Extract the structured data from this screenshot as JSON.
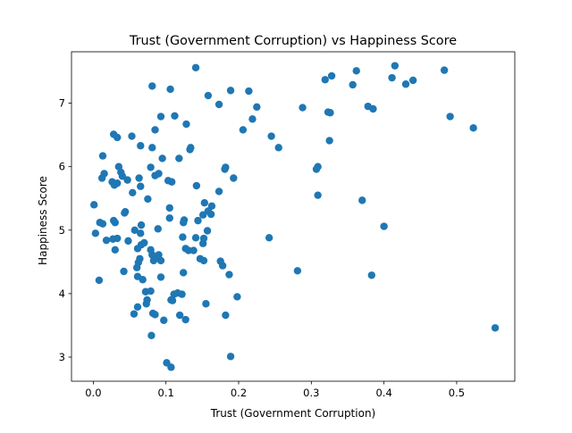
{
  "chart_data": {
    "type": "scatter",
    "title": "Trust (Government Corruption) vs Happiness Score",
    "xlabel": "Trust (Government Corruption)",
    "ylabel": "Happiness Score",
    "xlim": [
      -0.03,
      0.58
    ],
    "ylim": [
      2.62,
      7.81
    ],
    "xticks": [
      "0.0",
      "0.1",
      "0.2",
      "0.3",
      "0.4",
      "0.5"
    ],
    "yticks": [
      "3",
      "4",
      "5",
      "6",
      "7"
    ],
    "grid": false,
    "marker_color": "#1f77b4",
    "points": [
      [
        0.141,
        7.56
      ],
      [
        0.362,
        7.51
      ],
      [
        0.415,
        7.59
      ],
      [
        0.483,
        7.52
      ],
      [
        0.328,
        7.43
      ],
      [
        0.44,
        7.36
      ],
      [
        0.319,
        7.37
      ],
      [
        0.411,
        7.4
      ],
      [
        0.357,
        7.29
      ],
      [
        0.43,
        7.3
      ],
      [
        0.081,
        7.27
      ],
      [
        0.106,
        7.22
      ],
      [
        0.158,
        7.12
      ],
      [
        0.189,
        7.2
      ],
      [
        0.214,
        7.19
      ],
      [
        0.173,
        6.98
      ],
      [
        0.225,
        6.94
      ],
      [
        0.288,
        6.93
      ],
      [
        0.378,
        6.95
      ],
      [
        0.385,
        6.91
      ],
      [
        0.323,
        6.86
      ],
      [
        0.326,
        6.85
      ],
      [
        0.112,
        6.8
      ],
      [
        0.093,
        6.79
      ],
      [
        0.219,
        6.75
      ],
      [
        0.491,
        6.79
      ],
      [
        0.128,
        6.67
      ],
      [
        0.085,
        6.58
      ],
      [
        0.206,
        6.58
      ],
      [
        0.523,
        6.61
      ],
      [
        0.028,
        6.51
      ],
      [
        0.033,
        6.46
      ],
      [
        0.053,
        6.48
      ],
      [
        0.245,
        6.48
      ],
      [
        0.325,
        6.41
      ],
      [
        0.065,
        6.33
      ],
      [
        0.081,
        6.3
      ],
      [
        0.134,
        6.3
      ],
      [
        0.133,
        6.27
      ],
      [
        0.255,
        6.3
      ],
      [
        0.013,
        6.17
      ],
      [
        0.095,
        6.13
      ],
      [
        0.118,
        6.13
      ],
      [
        0.035,
        6.0
      ],
      [
        0.079,
        5.99
      ],
      [
        0.182,
        5.99
      ],
      [
        0.307,
        5.96
      ],
      [
        0.309,
        6.0
      ],
      [
        0.015,
        5.89
      ],
      [
        0.038,
        5.91
      ],
      [
        0.085,
        5.86
      ],
      [
        0.09,
        5.89
      ],
      [
        0.181,
        5.96
      ],
      [
        0.012,
        5.82
      ],
      [
        0.026,
        5.76
      ],
      [
        0.033,
        5.74
      ],
      [
        0.04,
        5.85
      ],
      [
        0.047,
        5.79
      ],
      [
        0.063,
        5.82
      ],
      [
        0.103,
        5.78
      ],
      [
        0.108,
        5.76
      ],
      [
        0.142,
        5.7
      ],
      [
        0.193,
        5.82
      ],
      [
        0.029,
        5.71
      ],
      [
        0.065,
        5.69
      ],
      [
        0.054,
        5.59
      ],
      [
        0.173,
        5.61
      ],
      [
        0.309,
        5.55
      ],
      [
        0.075,
        5.49
      ],
      [
        0.153,
        5.43
      ],
      [
        0.37,
        5.47
      ],
      [
        0.163,
        5.38
      ],
      [
        0.001,
        5.4
      ],
      [
        0.105,
        5.35
      ],
      [
        0.044,
        5.29
      ],
      [
        0.043,
        5.27
      ],
      [
        0.158,
        5.3
      ],
      [
        0.162,
        5.25
      ],
      [
        0.151,
        5.24
      ],
      [
        0.105,
        5.19
      ],
      [
        0.125,
        5.16
      ],
      [
        0.124,
        5.12
      ],
      [
        0.028,
        5.15
      ],
      [
        0.03,
        5.12
      ],
      [
        0.009,
        5.12
      ],
      [
        0.013,
        5.1
      ],
      [
        0.066,
        5.08
      ],
      [
        0.144,
        5.15
      ],
      [
        0.057,
        5.0
      ],
      [
        0.089,
        5.02
      ],
      [
        0.157,
        4.99
      ],
      [
        0.4,
        5.06
      ],
      [
        0.003,
        4.95
      ],
      [
        0.065,
        4.95
      ],
      [
        0.123,
        4.89
      ],
      [
        0.141,
        4.88
      ],
      [
        0.152,
        4.87
      ],
      [
        0.242,
        4.88
      ],
      [
        0.018,
        4.84
      ],
      [
        0.027,
        4.86
      ],
      [
        0.033,
        4.87
      ],
      [
        0.048,
        4.83
      ],
      [
        0.07,
        4.8
      ],
      [
        0.066,
        4.77
      ],
      [
        0.061,
        4.71
      ],
      [
        0.03,
        4.69
      ],
      [
        0.079,
        4.69
      ],
      [
        0.127,
        4.71
      ],
      [
        0.131,
        4.68
      ],
      [
        0.138,
        4.68
      ],
      [
        0.151,
        4.79
      ],
      [
        0.081,
        4.61
      ],
      [
        0.09,
        4.61
      ],
      [
        0.089,
        4.56
      ],
      [
        0.064,
        4.55
      ],
      [
        0.083,
        4.52
      ],
      [
        0.093,
        4.52
      ],
      [
        0.062,
        4.49
      ],
      [
        0.147,
        4.55
      ],
      [
        0.152,
        4.52
      ],
      [
        0.175,
        4.51
      ],
      [
        0.178,
        4.44
      ],
      [
        0.06,
        4.41
      ],
      [
        0.042,
        4.35
      ],
      [
        0.124,
        4.33
      ],
      [
        0.187,
        4.3
      ],
      [
        0.281,
        4.36
      ],
      [
        0.383,
        4.29
      ],
      [
        0.061,
        4.27
      ],
      [
        0.093,
        4.26
      ],
      [
        0.068,
        4.22
      ],
      [
        0.008,
        4.21
      ],
      [
        0.072,
        4.03
      ],
      [
        0.079,
        4.04
      ],
      [
        0.116,
        4.01
      ],
      [
        0.122,
        3.99
      ],
      [
        0.111,
        3.99
      ],
      [
        0.107,
        3.9
      ],
      [
        0.109,
        3.89
      ],
      [
        0.198,
        3.95
      ],
      [
        0.074,
        3.9
      ],
      [
        0.155,
        3.84
      ],
      [
        0.061,
        3.79
      ],
      [
        0.073,
        3.84
      ],
      [
        0.056,
        3.68
      ],
      [
        0.085,
        3.67
      ],
      [
        0.082,
        3.69
      ],
      [
        0.119,
        3.66
      ],
      [
        0.182,
        3.66
      ],
      [
        0.097,
        3.58
      ],
      [
        0.127,
        3.59
      ],
      [
        0.08,
        3.34
      ],
      [
        0.553,
        3.46
      ],
      [
        0.189,
        3.01
      ],
      [
        0.101,
        2.91
      ],
      [
        0.107,
        2.84
      ]
    ]
  }
}
